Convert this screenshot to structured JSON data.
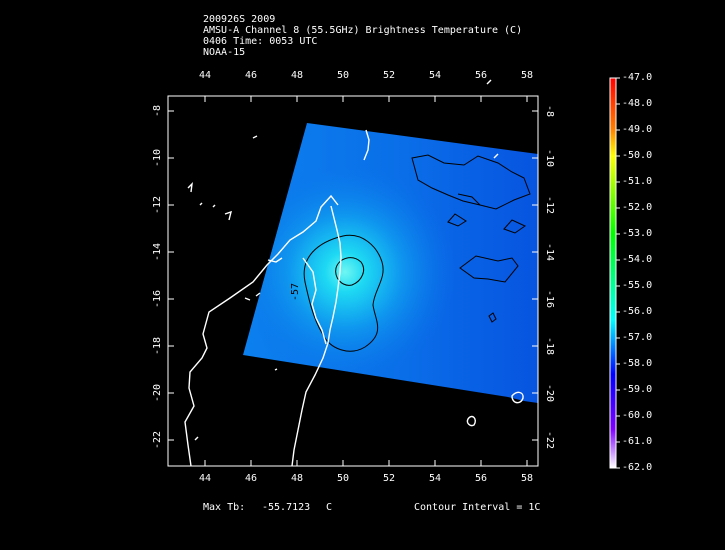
{
  "header": {
    "line1": "200926S 2009",
    "line2": "AMSU-A Channel 8 (55.5GHz) Brightness Temperature (C)",
    "line3": "0406 Time: 0053 UTC",
    "line4": "NOAA-15"
  },
  "axes": {
    "lon_ticks": [
      "44",
      "46",
      "48",
      "50",
      "52",
      "54",
      "56",
      "58"
    ],
    "lat_ticks": [
      "-8",
      "-10",
      "-12",
      "-14",
      "-16",
      "-18",
      "-20",
      "-22"
    ]
  },
  "colorbar": {
    "labels": [
      "-47.0",
      "-48.0",
      "-49.0",
      "-50.0",
      "-51.0",
      "-52.0",
      "-53.0",
      "-54.0",
      "-55.0",
      "-56.0",
      "-57.0",
      "-58.0",
      "-59.0",
      "-60.0",
      "-61.0",
      "-62.0"
    ],
    "colors": [
      "#ff0000",
      "#ff7f00",
      "#ffff00",
      "#00ff00",
      "#00ffff",
      "#0000ff",
      "#7f00ff",
      "#ffffff"
    ]
  },
  "contour_label": "-57",
  "footer": {
    "max_label": "Max Tb:",
    "max_value": "-55.7123",
    "max_unit": "C",
    "contour_interval": "Contour Interval = 1C"
  }
}
